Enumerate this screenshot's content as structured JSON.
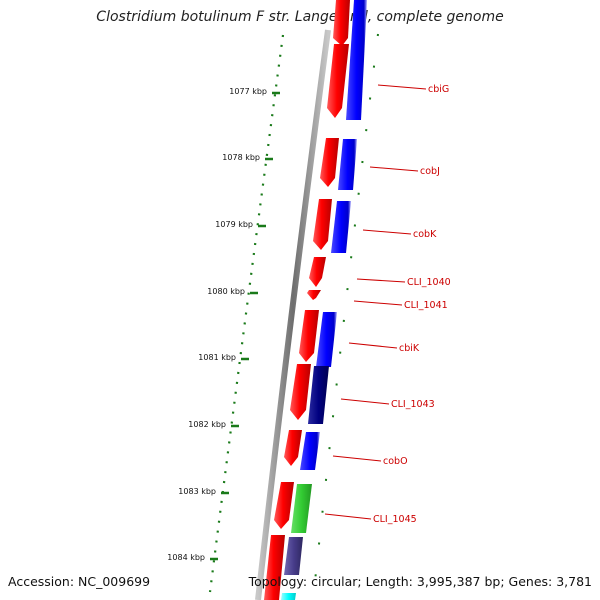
{
  "title": "Clostridium botulinum F str. Langeland, complete genome",
  "footer": {
    "accession": "Accession: NC_009699",
    "stats": "Topology: circular; Length: 3,995,387 bp; Genes: 3,781"
  },
  "colors": {
    "backbone": "#7f7f7f",
    "tick": "#1a7a1a",
    "forward_gene": "#ff0000",
    "label": "#cc0000",
    "blue": "#0000ff",
    "navy": "#000080",
    "green": "#33cc33",
    "slate": "#483d8b",
    "cyan": "#00ffff"
  },
  "scale_ticks": [
    "1077 kbp",
    "1078 kbp",
    "1079 kbp",
    "1080 kbp",
    "1081 kbp",
    "1082 kbp",
    "1083 kbp",
    "1084 kbp"
  ],
  "gene_labels": [
    "cbiG",
    "cobJ",
    "cobK",
    "CLI_1040",
    "CLI_1041",
    "cbiK",
    "CLI_1043",
    "cobO",
    "CLI_1045"
  ]
}
